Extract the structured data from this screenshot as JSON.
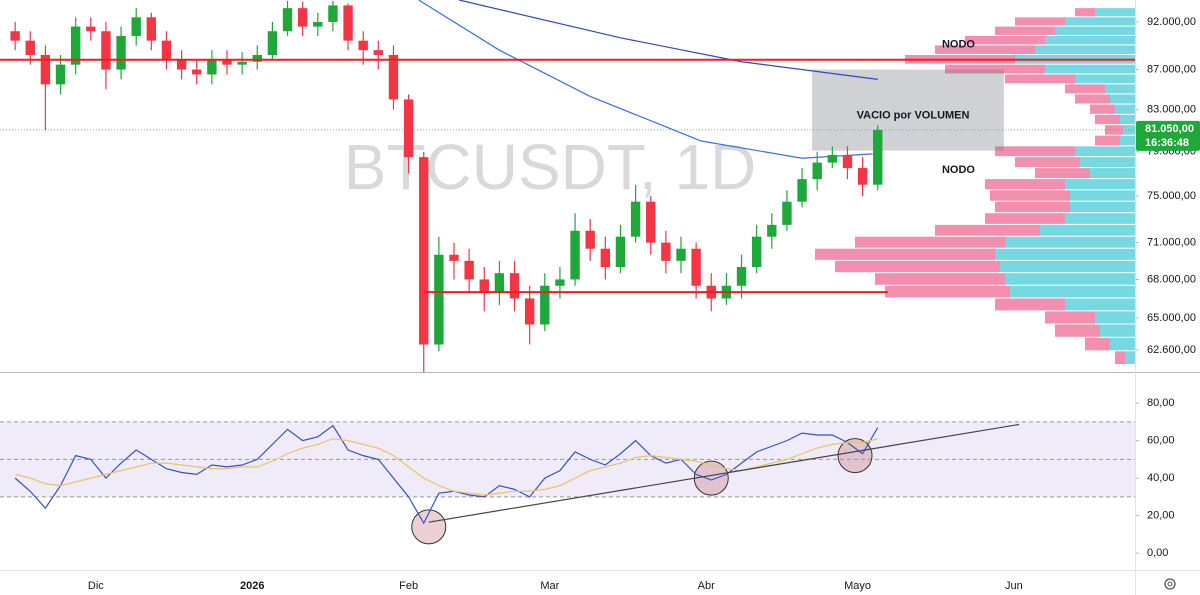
{
  "chart_data": [
    {
      "type": "candlestick",
      "watermark": "BTCUSDT, 1D",
      "log_scale": true,
      "grid": false,
      "up_color": "#1fa83a",
      "down_color": "#f23645",
      "xlim": [
        -19,
        206
      ],
      "xticks": [
        {
          "value": 0,
          "label": "Dic"
        },
        {
          "value": 31,
          "label": "2026",
          "bold": true
        },
        {
          "value": 62,
          "label": "Feb"
        },
        {
          "value": 90,
          "label": "Mar"
        },
        {
          "value": 121,
          "label": "Abr"
        },
        {
          "value": 151,
          "label": "Mayo"
        },
        {
          "value": 182,
          "label": "Jun"
        }
      ],
      "ylim": [
        61000,
        94400
      ],
      "yticks": [
        {
          "value": 92000,
          "label": "92.000,00"
        },
        {
          "value": 87000,
          "label": "87.000,00"
        },
        {
          "value": 83000,
          "label": "83.000,00"
        },
        {
          "value": 79000,
          "label": "79.000,00"
        },
        {
          "value": 75000,
          "label": "75.000,00"
        },
        {
          "value": 71000,
          "label": "71.000,00"
        },
        {
          "value": 68000,
          "label": "68.000,00"
        },
        {
          "value": 65000,
          "label": "65.000,00"
        },
        {
          "value": 62600,
          "label": "62.600,00"
        }
      ],
      "x": [
        -16,
        -13,
        -10,
        -7,
        -4,
        -1,
        2,
        5,
        8,
        11,
        14,
        17,
        20,
        23,
        26,
        29,
        32,
        35,
        38,
        41,
        44,
        47,
        50,
        53,
        56,
        59,
        62,
        65,
        68,
        71,
        74,
        77,
        80,
        83,
        86,
        89,
        92,
        95,
        98,
        101,
        104,
        107,
        110,
        113,
        116,
        119,
        122,
        125,
        128,
        131,
        134,
        137,
        140,
        143,
        146,
        149,
        152,
        155
      ],
      "open": [
        91000,
        90000,
        88500,
        85500,
        87500,
        91500,
        91000,
        87000,
        90500,
        92500,
        90000,
        88000,
        87000,
        86500,
        88000,
        87500,
        87800,
        88500,
        91000,
        93500,
        91500,
        92000,
        93800,
        90000,
        89000,
        88500,
        84000,
        78500,
        63000,
        70000,
        69500,
        68000,
        67000,
        68500,
        66500,
        64500,
        67500,
        68000,
        72000,
        70500,
        69000,
        71500,
        74500,
        71000,
        69500,
        70500,
        67500,
        66500,
        67500,
        69000,
        71500,
        72500,
        74500,
        76500,
        78000,
        78700,
        77500,
        76000
      ],
      "high": [
        92000,
        91000,
        89500,
        88500,
        92500,
        92500,
        92000,
        91500,
        93500,
        93000,
        91000,
        89000,
        88000,
        89000,
        89000,
        88800,
        89500,
        92000,
        94300,
        94200,
        93000,
        94300,
        94000,
        91000,
        90000,
        89500,
        84500,
        79000,
        71500,
        71000,
        70500,
        69000,
        69500,
        69500,
        67500,
        68500,
        69000,
        73500,
        73000,
        71500,
        72500,
        76000,
        75000,
        72000,
        71500,
        71000,
        68500,
        68500,
        70000,
        72500,
        73500,
        75500,
        77500,
        79000,
        79500,
        79500,
        78500,
        81500
      ],
      "low": [
        89000,
        87500,
        81000,
        84500,
        86500,
        90000,
        85000,
        86000,
        89500,
        89000,
        87000,
        86000,
        85500,
        85500,
        86500,
        86500,
        87000,
        88000,
        90500,
        90500,
        90500,
        91000,
        89000,
        87500,
        87000,
        83000,
        77000,
        60200,
        62500,
        68000,
        67000,
        65500,
        66000,
        65500,
        63000,
        64000,
        66500,
        67500,
        69500,
        68000,
        68500,
        71000,
        70000,
        68500,
        68500,
        66500,
        65500,
        66000,
        66500,
        68500,
        70500,
        72000,
        74000,
        75500,
        77500,
        76500,
        75000,
        75500
      ],
      "close": [
        90000,
        88500,
        85500,
        87500,
        91500,
        91000,
        87000,
        90500,
        92500,
        90000,
        88000,
        87000,
        86500,
        88000,
        87500,
        87800,
        88500,
        91000,
        93500,
        91500,
        92000,
        93800,
        90000,
        89000,
        88500,
        84000,
        78500,
        63000,
        70000,
        69500,
        68000,
        67000,
        68500,
        66500,
        64500,
        67500,
        68000,
        72000,
        70500,
        69000,
        71500,
        74500,
        71000,
        69500,
        70500,
        67500,
        66500,
        67500,
        69000,
        71500,
        72500,
        74500,
        76500,
        78000,
        78700,
        77500,
        76000,
        81050
      ],
      "moving_averages": [
        {
          "color": "#3d6ee8",
          "x": [
            64,
            80,
            98,
            120,
            140,
            154
          ],
          "values": [
            94400,
            89000,
            84300,
            80000,
            78400,
            78800
          ]
        },
        {
          "color": "#3346c8",
          "x": [
            72,
            104,
            128,
            155
          ],
          "values": [
            94400,
            90300,
            87800,
            86000
          ]
        }
      ],
      "levels": [
        {
          "value": 88000,
          "color": "#f01e1e"
        },
        {
          "value": 67000,
          "color": "#f01e1e",
          "x": [
            65,
            157
          ]
        }
      ],
      "last_price": {
        "value": 81050,
        "label": "81.050,00",
        "countdown": "16:36:48",
        "color": "#1fa83a"
      },
      "zone": {
        "x": [
          142,
          180
        ],
        "y": [
          79100,
          87000
        ],
        "label": "VACIO por VOLUMEN",
        "label_x": 162,
        "label_y": 82400
      },
      "annotations": [
        {
          "text": "NODO",
          "x": 171,
          "y": 89600
        },
        {
          "text": "NODO",
          "x": 171,
          "y": 77300
        }
      ],
      "volume_profile": {
        "up_color": "#5fd1dd",
        "down_color": "#f07aa0",
        "prices": [
          62000,
          63000,
          64000,
          65000,
          66000,
          67000,
          68000,
          69000,
          70000,
          71000,
          72000,
          73000,
          74000,
          75000,
          76000,
          77000,
          78000,
          79000,
          80000,
          81000,
          82000,
          83000,
          84000,
          85000,
          86000,
          87000,
          88000,
          89000,
          90000,
          91000,
          92000,
          93000
        ],
        "up": [
          10,
          25,
          35,
          40,
          70,
          125,
          130,
          135,
          140,
          130,
          95,
          70,
          65,
          65,
          70,
          45,
          55,
          60,
          15,
          12,
          15,
          20,
          25,
          30,
          60,
          90,
          120,
          100,
          90,
          80,
          70,
          40
        ],
        "down": [
          10,
          25,
          45,
          50,
          70,
          125,
          130,
          165,
          180,
          150,
          105,
          80,
          75,
          80,
          80,
          55,
          65,
          80,
          25,
          18,
          25,
          25,
          35,
          40,
          70,
          100,
          110,
          100,
          80,
          60,
          50,
          20
        ]
      }
    },
    {
      "type": "line",
      "ylim": [
        -9,
        95
      ],
      "yticks": [
        {
          "value": 0,
          "label": "0,00"
        },
        {
          "value": 20,
          "label": "20,00"
        },
        {
          "value": 40,
          "label": "40,00"
        },
        {
          "value": 60,
          "label": "60,00"
        },
        {
          "value": 80,
          "label": "80,00"
        }
      ],
      "band": [
        30,
        70
      ],
      "levels": [
        70,
        50,
        30
      ],
      "series": [
        {
          "color": "#3552c9",
          "values": [
            40,
            33,
            24,
            36,
            52,
            50,
            40,
            48,
            55,
            50,
            45,
            43,
            42,
            47,
            46,
            47,
            50,
            58,
            66,
            60,
            62,
            68,
            55,
            52,
            50,
            40,
            30,
            16,
            32,
            33,
            31,
            30,
            36,
            34,
            30,
            40,
            44,
            54,
            50,
            47,
            53,
            60,
            52,
            48,
            50,
            42,
            39,
            42,
            48,
            54,
            57,
            60,
            64,
            63,
            63,
            59,
            53,
            67
          ]
        },
        {
          "color": "#e9c46a",
          "values": [
            42,
            40,
            37,
            36,
            38,
            40,
            42,
            44,
            46,
            48,
            48,
            47,
            46,
            45,
            45,
            46,
            46,
            49,
            53,
            56,
            58,
            61,
            60,
            58,
            56,
            52,
            46,
            40,
            36,
            33,
            32,
            31,
            32,
            33,
            33,
            34,
            36,
            40,
            44,
            46,
            48,
            51,
            52,
            51,
            50,
            49,
            47,
            45,
            44,
            46,
            48,
            50,
            53,
            56,
            58,
            59,
            59,
            61
          ]
        }
      ],
      "trendline": {
        "color": "#444444",
        "x": [
          66,
          183
        ],
        "values": [
          16.5,
          68.6
        ]
      },
      "highlights": {
        "x": [
          66,
          122,
          150.5
        ],
        "values": [
          14,
          40,
          52
        ]
      }
    }
  ]
}
